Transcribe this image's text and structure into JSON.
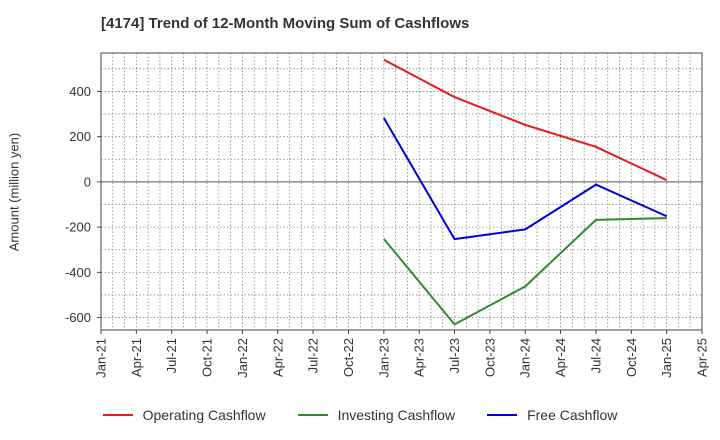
{
  "chart_data": {
    "type": "line",
    "title": "[4174]  Trend of 12-Month Moving Sum of Cashflows",
    "ylabel": "Amount (million yen)",
    "xlabel": "",
    "x_ticks": [
      "Jan-21",
      "Apr-21",
      "Jul-21",
      "Oct-21",
      "Jan-22",
      "Apr-22",
      "Jul-22",
      "Oct-22",
      "Jan-23",
      "Apr-23",
      "Jul-23",
      "Oct-23",
      "Jan-24",
      "Apr-24",
      "Jul-24",
      "Oct-24",
      "Jan-25",
      "Apr-25"
    ],
    "y_ticks": [
      400,
      200,
      0,
      -200,
      -400,
      -600
    ],
    "ylim": [
      -655,
      570
    ],
    "grid": true,
    "legend_position": "bottom",
    "x": [
      "Jan-23",
      "Jul-23",
      "Jan-24",
      "Jul-24",
      "Jan-25"
    ],
    "series": [
      {
        "name": "Operating Cashflow",
        "color": "#e41a1c",
        "values": [
          540,
          375,
          252,
          155,
          8
        ]
      },
      {
        "name": "Investing Cashflow",
        "color": "#2e8b2e",
        "values": [
          -252,
          -630,
          -462,
          -168,
          -160
        ]
      },
      {
        "name": "Free Cashflow",
        "color": "#0000dd",
        "values": [
          283,
          -253,
          -210,
          -12,
          -152
        ]
      }
    ]
  }
}
